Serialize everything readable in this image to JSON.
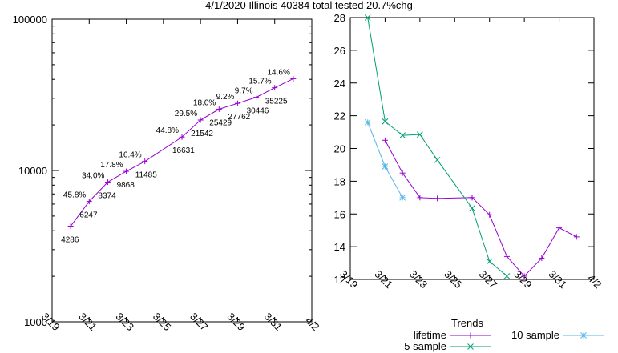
{
  "title": "4/1/2020 Illinois 40384 total tested 20.7%chg",
  "chart_data": [
    {
      "type": "line",
      "yscale": "log",
      "ylim": [
        1000,
        100000
      ],
      "ytick_labels": [
        "1000",
        "10000",
        "100000"
      ],
      "xlim": [
        "3/19",
        "4/2"
      ],
      "xtick_labels": [
        "3/19",
        "3/21",
        "3/23",
        "3/25",
        "3/27",
        "3/29",
        "3/31",
        "4/2"
      ],
      "grid": false,
      "color": "#9400d3",
      "series": [
        {
          "x": [
            "3/20",
            "3/21",
            "3/22",
            "3/23",
            "3/24",
            "3/26",
            "3/27",
            "3/28",
            "3/29",
            "3/30",
            "3/31",
            "4/1"
          ],
          "values": [
            4286,
            6247,
            8374,
            9868,
            11485,
            16631,
            21542,
            25429,
            27762,
            30446,
            35225,
            40384
          ]
        }
      ],
      "annotations": [
        {
          "x": "3/20",
          "y": 4286,
          "text": "4286",
          "pos": "below"
        },
        {
          "x": "3/21",
          "y": 6247,
          "text": "6247",
          "pos": "below"
        },
        {
          "x": "3/21",
          "y": 6247,
          "text": "45.8%",
          "pos": "left"
        },
        {
          "x": "3/22",
          "y": 8374,
          "text": "8374",
          "pos": "below"
        },
        {
          "x": "3/22",
          "y": 8374,
          "text": "34.0%",
          "pos": "left"
        },
        {
          "x": "3/23",
          "y": 9868,
          "text": "9868",
          "pos": "below"
        },
        {
          "x": "3/23",
          "y": 9868,
          "text": "17.8%",
          "pos": "left"
        },
        {
          "x": "3/24",
          "y": 11485,
          "text": "11485",
          "pos": "below"
        },
        {
          "x": "3/24",
          "y": 11485,
          "text": "16.4%",
          "pos": "left"
        },
        {
          "x": "3/26",
          "y": 16631,
          "text": "16631",
          "pos": "below"
        },
        {
          "x": "3/26",
          "y": 16631,
          "text": "44.8%",
          "pos": "left"
        },
        {
          "x": "3/27",
          "y": 21542,
          "text": "21542",
          "pos": "below"
        },
        {
          "x": "3/27",
          "y": 21542,
          "text": "29.5%",
          "pos": "left"
        },
        {
          "x": "3/28",
          "y": 25429,
          "text": "25429",
          "pos": "below"
        },
        {
          "x": "3/28",
          "y": 25429,
          "text": "18.0%",
          "pos": "left"
        },
        {
          "x": "3/29",
          "y": 27762,
          "text": "27762",
          "pos": "below"
        },
        {
          "x": "3/29",
          "y": 27762,
          "text": "9.2%",
          "pos": "left"
        },
        {
          "x": "3/30",
          "y": 30446,
          "text": "30446",
          "pos": "below"
        },
        {
          "x": "3/30",
          "y": 30446,
          "text": "9.7%",
          "pos": "left"
        },
        {
          "x": "3/31",
          "y": 35225,
          "text": "35225",
          "pos": "below"
        },
        {
          "x": "3/31",
          "y": 35225,
          "text": "15.7%",
          "pos": "left"
        },
        {
          "x": "4/1",
          "y": 40384,
          "text": "14.6%",
          "pos": "left"
        }
      ]
    },
    {
      "type": "line",
      "ylim": [
        12,
        28
      ],
      "ytick_labels": [
        "12",
        "14",
        "16",
        "18",
        "20",
        "22",
        "24",
        "26",
        "28"
      ],
      "xlim": [
        "3/19",
        "4/2"
      ],
      "xtick_labels": [
        "3/19",
        "3/21",
        "3/23",
        "3/25",
        "3/27",
        "3/29",
        "3/31",
        "4/2"
      ],
      "grid": false,
      "legend": {
        "title": "Trends",
        "position": "bottom-right"
      },
      "series": [
        {
          "name": "lifetime",
          "color": "#9400d3",
          "marker": "plus",
          "x": [
            "3/21",
            "3/22",
            "3/23",
            "3/24",
            "3/26",
            "3/27",
            "3/28",
            "3/29",
            "3/30",
            "3/31",
            "4/1"
          ],
          "values": [
            20.5,
            18.5,
            17.0,
            16.95,
            17.0,
            15.95,
            13.4,
            12.2,
            13.3,
            15.15,
            14.6
          ]
        },
        {
          "name": "5 sample",
          "color": "#009e73",
          "marker": "cross",
          "x": [
            "3/20",
            "3/21",
            "3/22",
            "3/23",
            "3/24",
            "3/26",
            "3/27",
            "3/28"
          ],
          "values": [
            28.0,
            21.65,
            20.8,
            20.85,
            19.3,
            16.35,
            13.1,
            12.2
          ]
        },
        {
          "name": "10 sample",
          "color": "#56b4e9",
          "marker": "star",
          "x": [
            "3/20",
            "3/21",
            "3/22"
          ],
          "values": [
            21.6,
            18.9,
            17.0
          ]
        }
      ]
    }
  ]
}
